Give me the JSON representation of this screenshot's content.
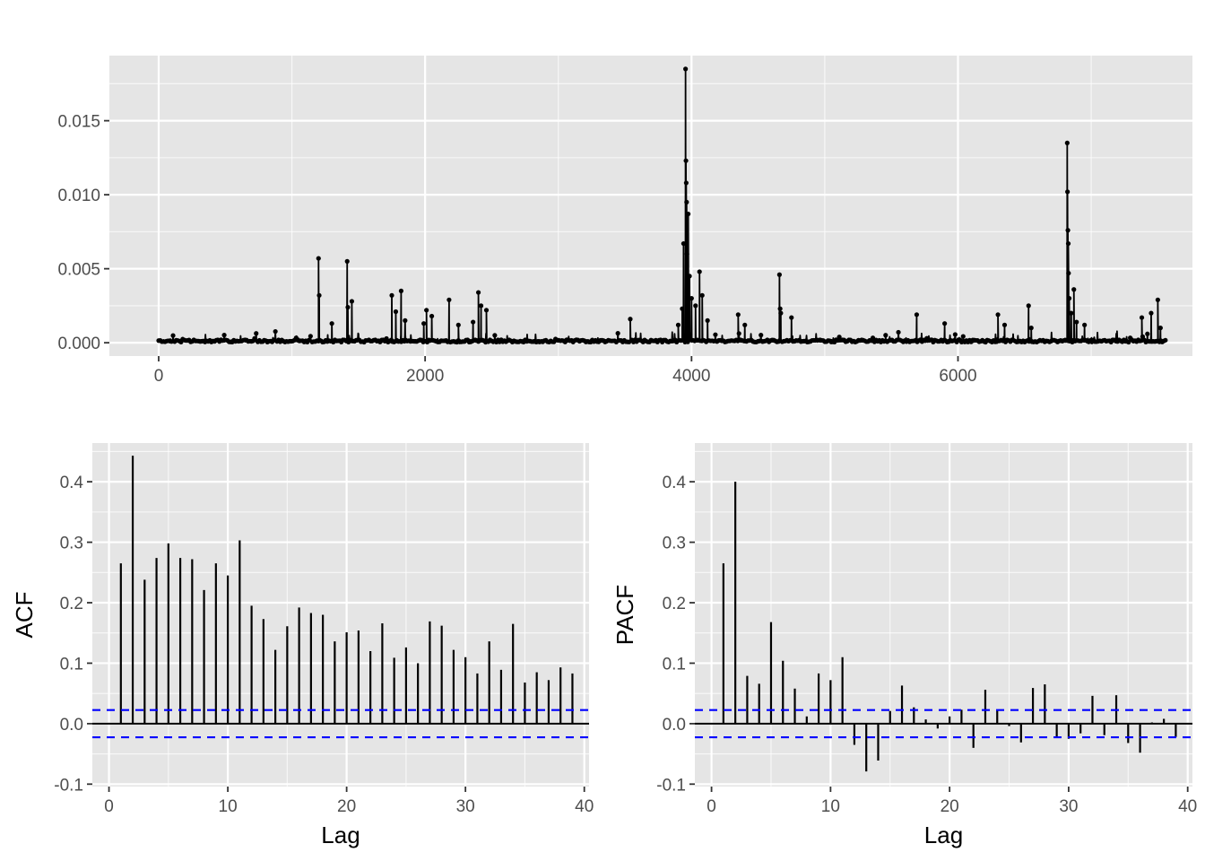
{
  "colors": {
    "panel_bg": "#e5e5e5",
    "grid_major": "#ffffff",
    "tick_text": "#4d4d4d",
    "series": "#000000",
    "ci_line": "#0000ff"
  },
  "chart_data": [
    {
      "type": "line",
      "with_points": true,
      "title": "",
      "xlabel": "",
      "ylabel": "",
      "xlim": [
        -370,
        7760
      ],
      "ylim": [
        -0.0009,
        0.0194
      ],
      "xticks": [
        0,
        2000,
        4000,
        6000
      ],
      "xtick_labels": [
        "0",
        "2000",
        "4000",
        "6000"
      ],
      "yticks": [
        0.0,
        0.005,
        0.01,
        0.015
      ],
      "ytick_labels": [
        "0.000",
        "0.005",
        "0.010",
        "0.015"
      ],
      "n": 7560,
      "baseline_level": 0.0001,
      "spikes": [
        {
          "x": 1200,
          "y": 0.0057
        },
        {
          "x": 1205,
          "y": 0.0032
        },
        {
          "x": 1415,
          "y": 0.0055
        },
        {
          "x": 1420,
          "y": 0.0024
        },
        {
          "x": 1450,
          "y": 0.0028
        },
        {
          "x": 1300,
          "y": 0.0013
        },
        {
          "x": 1750,
          "y": 0.0032
        },
        {
          "x": 1780,
          "y": 0.0021
        },
        {
          "x": 1820,
          "y": 0.0035
        },
        {
          "x": 1850,
          "y": 0.0015
        },
        {
          "x": 1990,
          "y": 0.0013
        },
        {
          "x": 2010,
          "y": 0.0022
        },
        {
          "x": 2050,
          "y": 0.0018
        },
        {
          "x": 2180,
          "y": 0.0029
        },
        {
          "x": 2250,
          "y": 0.0012
        },
        {
          "x": 2400,
          "y": 0.0034
        },
        {
          "x": 2420,
          "y": 0.0025
        },
        {
          "x": 2460,
          "y": 0.0022
        },
        {
          "x": 2360,
          "y": 0.0014
        },
        {
          "x": 3540,
          "y": 0.0016
        },
        {
          "x": 3900,
          "y": 0.0012
        },
        {
          "x": 3930,
          "y": 0.0023
        },
        {
          "x": 3940,
          "y": 0.0067
        },
        {
          "x": 3955,
          "y": 0.0185
        },
        {
          "x": 3958,
          "y": 0.0123
        },
        {
          "x": 3960,
          "y": 0.0108
        },
        {
          "x": 3963,
          "y": 0.0095
        },
        {
          "x": 3965,
          "y": 0.006
        },
        {
          "x": 3975,
          "y": 0.0087
        },
        {
          "x": 3985,
          "y": 0.0045
        },
        {
          "x": 4000,
          "y": 0.003
        },
        {
          "x": 4030,
          "y": 0.0025
        },
        {
          "x": 4060,
          "y": 0.0048
        },
        {
          "x": 4080,
          "y": 0.0032
        },
        {
          "x": 4120,
          "y": 0.0015
        },
        {
          "x": 4350,
          "y": 0.0019
        },
        {
          "x": 4400,
          "y": 0.0012
        },
        {
          "x": 4660,
          "y": 0.0046
        },
        {
          "x": 4665,
          "y": 0.0023
        },
        {
          "x": 4670,
          "y": 0.002
        },
        {
          "x": 4750,
          "y": 0.0017
        },
        {
          "x": 5690,
          "y": 0.0019
        },
        {
          "x": 5900,
          "y": 0.0013
        },
        {
          "x": 6300,
          "y": 0.0019
        },
        {
          "x": 6350,
          "y": 0.0012
        },
        {
          "x": 6530,
          "y": 0.0025
        },
        {
          "x": 6550,
          "y": 0.001
        },
        {
          "x": 6820,
          "y": 0.0135
        },
        {
          "x": 6822,
          "y": 0.0102
        },
        {
          "x": 6825,
          "y": 0.0076
        },
        {
          "x": 6828,
          "y": 0.0067
        },
        {
          "x": 6830,
          "y": 0.0047
        },
        {
          "x": 6835,
          "y": 0.003
        },
        {
          "x": 6850,
          "y": 0.002
        },
        {
          "x": 6870,
          "y": 0.0036
        },
        {
          "x": 6890,
          "y": 0.0014
        },
        {
          "x": 6950,
          "y": 0.0012
        },
        {
          "x": 7380,
          "y": 0.0017
        },
        {
          "x": 7450,
          "y": 0.002
        },
        {
          "x": 7500,
          "y": 0.0029
        },
        {
          "x": 7520,
          "y": 0.001
        }
      ]
    },
    {
      "type": "bar",
      "name": "acf",
      "title": "",
      "xlabel": "Lag",
      "ylabel": "ACF",
      "xlim": [
        -1.4,
        40.4
      ],
      "ylim": [
        -0.104,
        0.464
      ],
      "xticks": [
        0,
        10,
        20,
        30,
        40
      ],
      "xtick_labels": [
        "0",
        "10",
        "20",
        "30",
        "40"
      ],
      "yticks": [
        -0.1,
        0.0,
        0.1,
        0.2,
        0.3,
        0.4
      ],
      "ytick_labels": [
        "-0.1",
        "0.0",
        "0.1",
        "0.2",
        "0.3",
        "0.4"
      ],
      "lags": [
        1,
        2,
        3,
        4,
        5,
        6,
        7,
        8,
        9,
        10,
        11,
        12,
        13,
        14,
        15,
        16,
        17,
        18,
        19,
        20,
        21,
        22,
        23,
        24,
        25,
        26,
        27,
        28,
        29,
        30,
        31,
        32,
        33,
        34,
        35,
        36,
        37,
        38,
        39
      ],
      "values": [
        0.265,
        0.443,
        0.238,
        0.274,
        0.298,
        0.274,
        0.272,
        0.221,
        0.265,
        0.245,
        0.303,
        0.195,
        0.173,
        0.122,
        0.161,
        0.192,
        0.183,
        0.18,
        0.136,
        0.151,
        0.154,
        0.12,
        0.166,
        0.109,
        0.126,
        0.1,
        0.169,
        0.162,
        0.122,
        0.11,
        0.083,
        0.136,
        0.089,
        0.165,
        0.068,
        0.085,
        0.072,
        0.093,
        0.083
      ],
      "ci": 0.0225
    },
    {
      "type": "bar",
      "name": "pacf",
      "title": "",
      "xlabel": "Lag",
      "ylabel": "PACF",
      "xlim": [
        -1.4,
        40.4
      ],
      "ylim": [
        -0.104,
        0.464
      ],
      "xticks": [
        0,
        10,
        20,
        30,
        40
      ],
      "xtick_labels": [
        "0",
        "10",
        "20",
        "30",
        "40"
      ],
      "yticks": [
        -0.1,
        0.0,
        0.1,
        0.2,
        0.3,
        0.4
      ],
      "ytick_labels": [
        "-0.1",
        "0.0",
        "0.1",
        "0.2",
        "0.3",
        "0.4"
      ],
      "lags": [
        1,
        2,
        3,
        4,
        5,
        6,
        7,
        8,
        9,
        10,
        11,
        12,
        13,
        14,
        15,
        16,
        17,
        18,
        19,
        20,
        21,
        22,
        23,
        24,
        25,
        26,
        27,
        28,
        29,
        30,
        31,
        32,
        33,
        34,
        35,
        36,
        37,
        38,
        39
      ],
      "values": [
        0.265,
        0.4,
        0.079,
        0.066,
        0.168,
        0.104,
        0.058,
        0.012,
        0.083,
        0.072,
        0.11,
        -0.035,
        -0.079,
        -0.061,
        0.021,
        0.063,
        0.027,
        0.007,
        -0.008,
        0.012,
        0.023,
        -0.04,
        0.056,
        0.022,
        -0.004,
        -0.031,
        0.059,
        0.065,
        -0.023,
        -0.025,
        -0.016,
        0.046,
        -0.019,
        0.047,
        -0.032,
        -0.048,
        0.002,
        0.008,
        -0.022
      ],
      "ci": 0.0225
    }
  ]
}
